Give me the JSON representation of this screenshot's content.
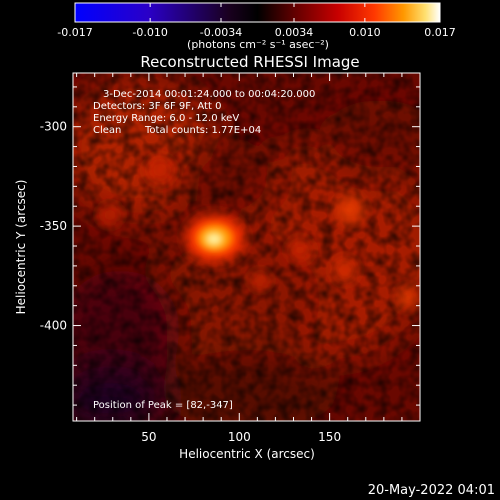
{
  "colorbar": {
    "ticks": [
      "-0.017",
      "-0.010",
      "-0.0034",
      "0.0034",
      "0.010",
      "0.017"
    ],
    "tick_values": [
      -0.017,
      -0.01,
      -0.0034,
      0.0034,
      0.01,
      0.017
    ],
    "unit_label": "(photons cm⁻² s⁻¹ asec⁻²)",
    "colormap": [
      "#0000ff",
      "#3000c0",
      "#000000",
      "#500000",
      "#b00000",
      "#ff3000",
      "#ff9000",
      "#ffe060",
      "#ffffff"
    ]
  },
  "plot": {
    "title": "Reconstructed RHESSI Image",
    "xlabel": "Heliocentric X (arcsec)",
    "ylabel": "Heliocentric Y (arcsec)",
    "x_ticks": [
      "50",
      "100",
      "150"
    ],
    "x_tick_values": [
      50,
      100,
      150
    ],
    "y_ticks": [
      "-300",
      "-350",
      "-400"
    ],
    "y_tick_values": [
      -300,
      -350,
      -400
    ],
    "xlim": [
      8,
      200
    ],
    "ylim": [
      -448,
      -273
    ]
  },
  "annotations": {
    "time_range": "3-Dec-2014 00:01:24.000 to 00:04:20.000",
    "detectors": "Detectors: 3F 6F 9F, Att 0",
    "energy_range": "Energy Range: 6.0 - 12.0 keV",
    "method": "Clean",
    "total_counts": "Total counts: 1.77E+04",
    "peak_position": "Position of Peak = [82,-347]"
  },
  "peak": {
    "x": 82,
    "y": -347
  },
  "timestamp": "20-May-2022 04:01"
}
